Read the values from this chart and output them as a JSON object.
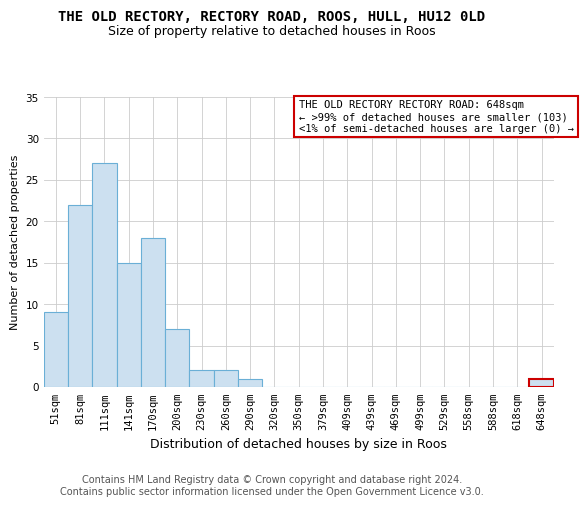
{
  "title": "THE OLD RECTORY, RECTORY ROAD, ROOS, HULL, HU12 0LD",
  "subtitle": "Size of property relative to detached houses in Roos",
  "xlabel": "Distribution of detached houses by size in Roos",
  "ylabel": "Number of detached properties",
  "categories": [
    "51sqm",
    "81sqm",
    "111sqm",
    "141sqm",
    "170sqm",
    "200sqm",
    "230sqm",
    "260sqm",
    "290sqm",
    "320sqm",
    "350sqm",
    "379sqm",
    "409sqm",
    "439sqm",
    "469sqm",
    "499sqm",
    "529sqm",
    "558sqm",
    "588sqm",
    "618sqm",
    "648sqm"
  ],
  "values": [
    9,
    22,
    27,
    15,
    18,
    7,
    2,
    2,
    1,
    0,
    0,
    0,
    0,
    0,
    0,
    0,
    0,
    0,
    0,
    0,
    1
  ],
  "bar_color": "#cce0f0",
  "bar_edge_color": "#6aafd6",
  "highlight_index": 20,
  "highlight_edge_color": "#cc0000",
  "ylim": [
    0,
    35
  ],
  "yticks": [
    0,
    5,
    10,
    15,
    20,
    25,
    30,
    35
  ],
  "legend_title": "THE OLD RECTORY RECTORY ROAD: 648sqm",
  "legend_line1": "← >99% of detached houses are smaller (103)",
  "legend_line2": "<1% of semi-detached houses are larger (0) →",
  "legend_box_color": "#cc0000",
  "footer_line1": "Contains HM Land Registry data © Crown copyright and database right 2024.",
  "footer_line2": "Contains public sector information licensed under the Open Government Licence v3.0.",
  "background_color": "#ffffff",
  "grid_color": "#cccccc",
  "title_fontsize": 10,
  "subtitle_fontsize": 9,
  "ylabel_fontsize": 8,
  "xlabel_fontsize": 9,
  "tick_fontsize": 7.5,
  "legend_fontsize": 7.5,
  "footer_fontsize": 7
}
